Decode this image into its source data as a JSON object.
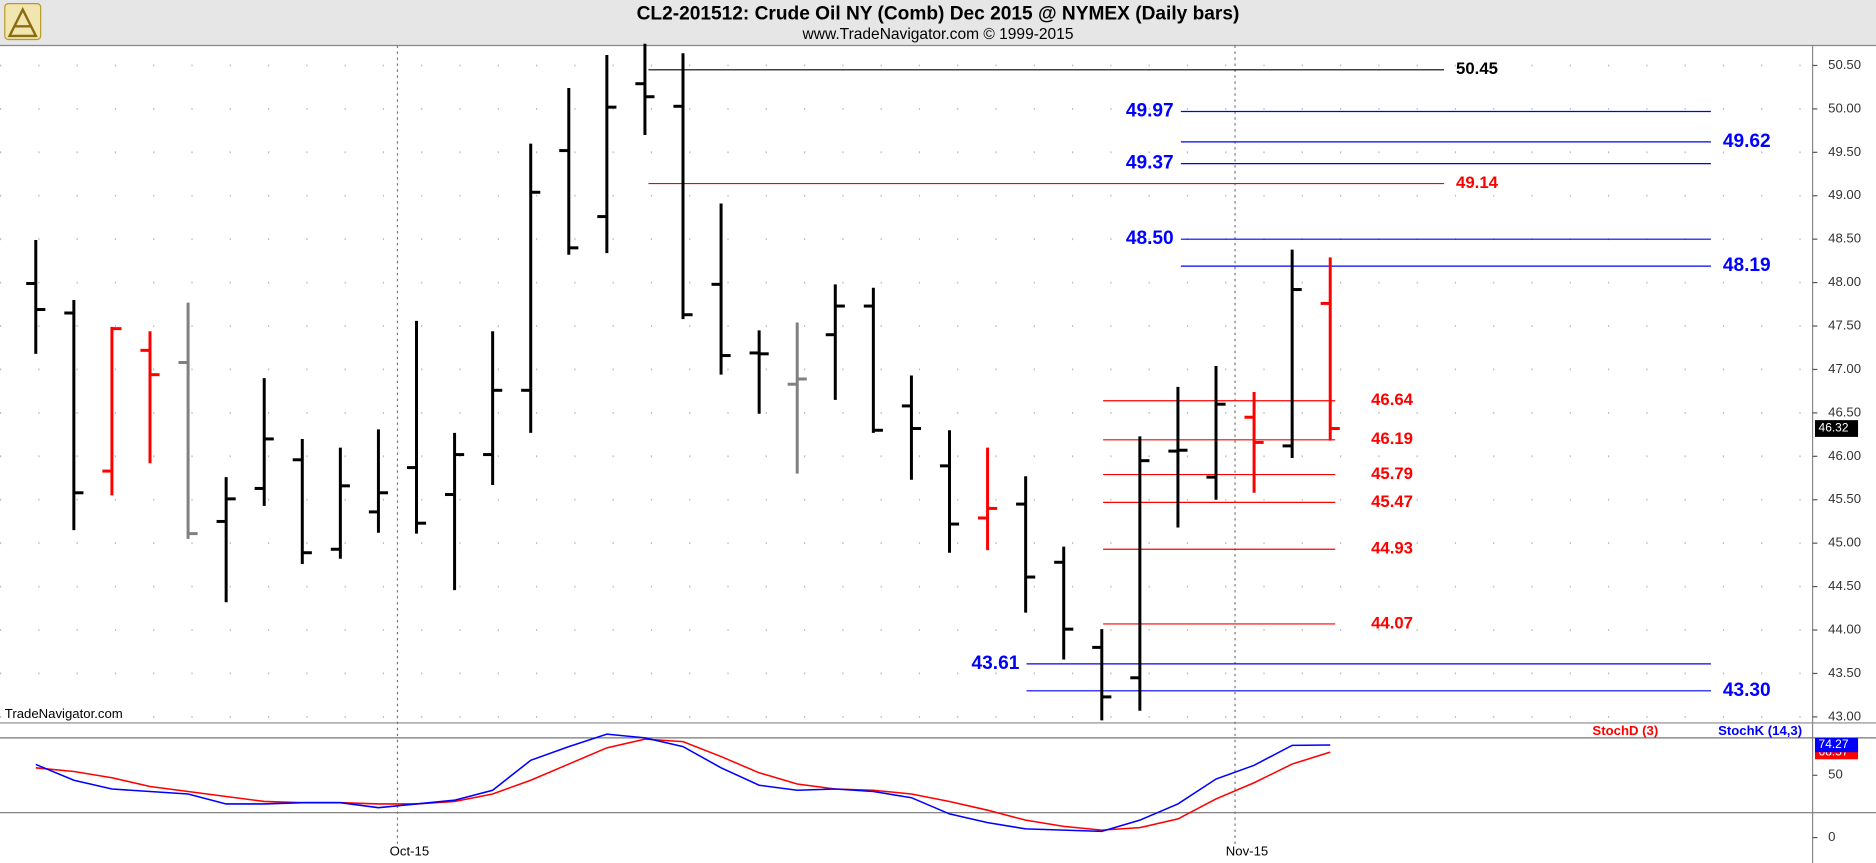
{
  "chart_data": [
    {
      "type": "ohlc",
      "title": "CL2-201512:  Crude Oil NY (Comb) Dec 2015 @ NYMEX  (Daily bars)",
      "subtitle": "www.TradeNavigator.com © 1999-2015",
      "watermark": "TradeNavigator.com",
      "x": [
        0,
        1,
        2,
        3,
        4,
        5,
        6,
        7,
        8,
        9,
        10,
        11,
        12,
        13,
        14,
        15,
        16,
        17,
        18,
        19,
        20,
        21,
        22,
        23,
        24,
        25,
        26,
        27,
        28,
        29,
        30,
        31,
        32,
        33,
        34
      ],
      "xlim": [
        -0.94,
        46.67
      ],
      "open": [
        47.99,
        47.65,
        45.83,
        47.22,
        47.08,
        45.25,
        45.63,
        45.96,
        44.93,
        45.36,
        45.87,
        45.56,
        46.02,
        46.76,
        49.52,
        48.76,
        50.29,
        50.03,
        47.98,
        47.19,
        46.83,
        47.4,
        47.73,
        46.58,
        45.89,
        45.29,
        45.45,
        44.78,
        43.8,
        43.45,
        46.06,
        45.76,
        46.45,
        46.12,
        47.76
      ],
      "high": [
        48.49,
        47.8,
        47.49,
        47.44,
        47.77,
        45.76,
        46.9,
        46.2,
        46.1,
        46.31,
        47.56,
        46.27,
        47.44,
        49.6,
        50.24,
        50.62,
        50.75,
        50.64,
        48.91,
        47.45,
        47.54,
        47.98,
        47.94,
        46.93,
        46.3,
        46.1,
        45.77,
        44.96,
        44.01,
        46.23,
        46.8,
        47.04,
        46.74,
        48.38,
        48.29
      ],
      "low": [
        47.18,
        45.15,
        45.55,
        45.92,
        45.05,
        44.32,
        45.43,
        44.76,
        44.82,
        45.12,
        45.11,
        44.46,
        45.67,
        46.27,
        48.32,
        48.34,
        49.7,
        47.58,
        46.94,
        46.49,
        45.8,
        46.65,
        46.27,
        45.73,
        44.89,
        44.92,
        44.2,
        43.66,
        42.96,
        43.07,
        45.18,
        45.5,
        45.58,
        45.98,
        46.18
      ],
      "close": [
        47.69,
        45.58,
        47.47,
        46.94,
        45.11,
        45.51,
        46.2,
        44.89,
        45.66,
        45.58,
        45.23,
        46.02,
        46.76,
        49.04,
        48.4,
        50.02,
        50.14,
        47.63,
        47.16,
        47.18,
        46.89,
        47.73,
        46.3,
        46.32,
        45.22,
        45.4,
        44.61,
        44.01,
        43.23,
        45.95,
        46.07,
        46.6,
        46.16,
        47.92,
        46.32
      ],
      "bar_colors": [
        "#000000",
        "#000000",
        "#ff0000",
        "#ff0000",
        "#808080",
        "#000000",
        "#000000",
        "#000000",
        "#000000",
        "#000000",
        "#000000",
        "#000000",
        "#000000",
        "#000000",
        "#000000",
        "#000000",
        "#000000",
        "#000000",
        "#000000",
        "#000000",
        "#808080",
        "#000000",
        "#000000",
        "#000000",
        "#000000",
        "#ff0000",
        "#000000",
        "#000000",
        "#000000",
        "#000000",
        "#000000",
        "#000000",
        "#ff0000",
        "#000000",
        "#ff0000"
      ],
      "ylim": [
        42.93,
        50.73
      ],
      "yticks": [
        {
          "value": 43,
          "label": "43.00"
        },
        {
          "value": 43.5,
          "label": "43.50"
        },
        {
          "value": 44,
          "label": "44.00"
        },
        {
          "value": 44.5,
          "label": "44.50"
        },
        {
          "value": 45,
          "label": "45.00"
        },
        {
          "value": 45.5,
          "label": "45.50"
        },
        {
          "value": 46,
          "label": "46.00"
        },
        {
          "value": 46.5,
          "label": "46.50"
        },
        {
          "value": 47,
          "label": "47.00"
        },
        {
          "value": 47.5,
          "label": "47.50"
        },
        {
          "value": 48,
          "label": "48.00"
        },
        {
          "value": 48.5,
          "label": "48.50"
        },
        {
          "value": 49,
          "label": "49.00"
        },
        {
          "value": 49.5,
          "label": "49.50"
        },
        {
          "value": 50,
          "label": "50.00"
        },
        {
          "value": 50.5,
          "label": "50.50"
        }
      ],
      "grid": true,
      "levels": {
        "values": [
          50.45,
          49.97,
          49.62,
          49.37,
          49.14,
          48.5,
          48.19,
          46.64,
          46.19,
          45.79,
          45.47,
          44.93,
          44.07,
          43.61,
          43.3
        ],
        "value_labels": [
          "50.45",
          "49.97",
          "49.62",
          "49.37",
          "49.14",
          "48.50",
          "48.19",
          "46.64",
          "46.19",
          "45.79",
          "45.47",
          "44.93",
          "44.07",
          "43.61",
          "43.30"
        ],
        "colors": [
          "#000000",
          "#0000ff",
          "#0000ff",
          "#0000ff",
          "#ff0000",
          "#0000ff",
          "#0000ff",
          "#ff0000",
          "#ff0000",
          "#ff0000",
          "#ff0000",
          "#ff0000",
          "#ff0000",
          "#0000ff",
          "#0000ff"
        ]
      }
    },
    {
      "type": "line",
      "xticks": [
        {
          "value": 9.5,
          "label": "Oct-15"
        },
        {
          "value": 31.5,
          "label": "Nov-15"
        }
      ],
      "ylim": [
        -5,
        91
      ],
      "yticks": [
        0,
        50
      ],
      "reference_lines": [
        20,
        80
      ],
      "series": [
        {
          "name": "StochD (3)",
          "color": "#ff0000",
          "values": [
            56,
            53,
            48,
            41,
            37,
            33,
            29,
            28,
            28,
            27,
            27,
            29,
            35,
            46,
            59,
            72,
            79,
            77,
            65,
            52,
            43,
            39,
            38,
            35,
            29,
            22,
            14,
            9,
            6,
            8,
            15,
            31,
            44,
            59,
            68.57
          ]
        },
        {
          "name": "StochK (14,3)",
          "color": "#0000ff",
          "values": [
            58.7,
            46,
            39,
            37,
            35,
            27,
            27,
            28,
            28,
            24,
            27,
            30,
            38,
            62,
            73,
            83,
            80,
            73,
            56,
            42,
            38,
            39,
            37,
            32,
            19,
            12,
            7,
            6,
            5,
            14,
            27,
            47,
            58,
            74,
            74.27
          ]
        }
      ]
    }
  ]
}
